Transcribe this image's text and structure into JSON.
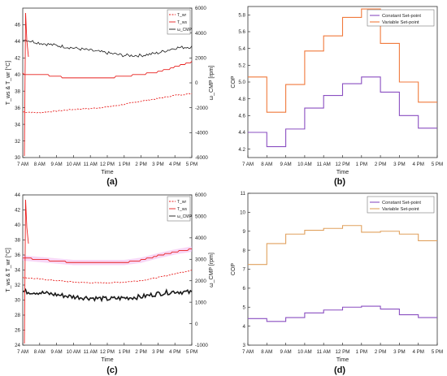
{
  "figure": {
    "panel_labels": [
      "(a)",
      "(b)",
      "(c)",
      "(d)"
    ]
  },
  "colors": {
    "red": "#e8201f",
    "black": "#1a1a1a",
    "purple": "#8a4fc1",
    "orange": "#f07a3c",
    "orange_d": "#e0a15e",
    "pink_band": "#f3b7ef"
  },
  "chart_data": [
    {
      "id": "a",
      "type": "line",
      "xlabel": "Time",
      "ylabel": "T_ws & T_wr [°C]",
      "y2label": "ω_CMP [rpm]",
      "xticks": [
        "7 AM",
        "8 AM",
        "9 AM",
        "10 AM",
        "11 AM",
        "12 PM",
        "1 PM",
        "2 PM",
        "3 PM",
        "4 PM",
        "5 PM"
      ],
      "ylim": [
        30,
        48
      ],
      "yticks": [
        30,
        32,
        34,
        36,
        38,
        40,
        42,
        44,
        46
      ],
      "y2lim": [
        -6000,
        6000
      ],
      "y2ticks": [
        -6000,
        -4000,
        -2000,
        0,
        2000,
        4000,
        6000
      ],
      "x": [
        7,
        8,
        9,
        10,
        11,
        12,
        13,
        14,
        15,
        16,
        17
      ],
      "legend": [
        "T_wr",
        "T_ws",
        "ω_CMP"
      ],
      "series": [
        {
          "name": "T_wr",
          "style": "dashed",
          "color": "red",
          "values": [
            35.5,
            35.4,
            35.6,
            35.8,
            35.9,
            36.1,
            36.4,
            36.8,
            37.1,
            37.5,
            37.7
          ]
        },
        {
          "name": "T_ws",
          "style": "solid",
          "color": "red",
          "values": [
            40.1,
            40.0,
            39.8,
            39.5,
            39.5,
            39.6,
            39.8,
            40.0,
            40.3,
            40.9,
            41.5
          ]
        },
        {
          "name": "ω_CMP",
          "axis": "right",
          "style": "solid",
          "color": "black",
          "values": [
            3500,
            3200,
            3000,
            2800,
            2600,
            2400,
            2200,
            2200,
            2400,
            2800,
            2900
          ]
        }
      ]
    },
    {
      "id": "b",
      "type": "line",
      "step": true,
      "xlabel": "Time",
      "ylabel": "COP",
      "xticks": [
        "7 AM",
        "8 AM",
        "9 AM",
        "10 AM",
        "11 AM",
        "12 PM",
        "1 PM",
        "2 PM",
        "3 PM",
        "4 PM",
        "5 PM"
      ],
      "ylim": [
        4.1,
        5.9
      ],
      "yticks": [
        4.2,
        4.4,
        4.6,
        4.8,
        5.0,
        5.2,
        5.4,
        5.6,
        5.8
      ],
      "legend_position": "top-right",
      "series": [
        {
          "name": "Constant Set-point",
          "color": "purple",
          "values": [
            4.4,
            4.23,
            4.44,
            4.69,
            4.84,
            4.98,
            5.06,
            4.88,
            4.6,
            4.45
          ]
        },
        {
          "name": "Variable Set-point",
          "color": "orange",
          "values": [
            5.06,
            4.64,
            4.97,
            5.37,
            5.55,
            5.77,
            5.87,
            5.46,
            5.0,
            4.76
          ]
        }
      ]
    },
    {
      "id": "c",
      "type": "line",
      "xlabel": "Time",
      "ylabel": "T_ws & T_wr [°C]",
      "y2label": "ω_CMP [rpm]",
      "xticks": [
        "7 AM",
        "8 AM",
        "9 AM",
        "10 AM",
        "11 AM",
        "12 PM",
        "1 PM",
        "2 PM",
        "3 PM",
        "4 PM",
        "5 PM"
      ],
      "ylim": [
        24,
        44
      ],
      "yticks": [
        24,
        26,
        28,
        30,
        32,
        34,
        36,
        38,
        40,
        42,
        44
      ],
      "y2lim": [
        -1000,
        6000
      ],
      "y2ticks": [
        -1000,
        0,
        1000,
        2000,
        3000,
        4000,
        5000,
        6000
      ],
      "x": [
        7,
        8,
        9,
        10,
        11,
        12,
        13,
        14,
        15,
        16,
        17
      ],
      "legend": [
        "T_wr",
        "T_ws",
        "ω_CMP"
      ],
      "series": [
        {
          "name": "T_wr",
          "style": "dashed",
          "color": "red",
          "values": [
            33.0,
            32.8,
            32.6,
            32.4,
            32.3,
            32.3,
            32.4,
            32.6,
            33.0,
            33.5,
            34.0
          ]
        },
        {
          "name": "T_ws",
          "style": "solid",
          "color": "red",
          "values": [
            35.6,
            35.4,
            35.2,
            35.0,
            35.0,
            35.0,
            35.0,
            35.3,
            35.9,
            36.4,
            36.8
          ]
        },
        {
          "name": "ω_CMP",
          "axis": "right",
          "style": "solid",
          "color": "black",
          "values": [
            1500,
            1450,
            1350,
            1250,
            1200,
            1150,
            1200,
            1250,
            1400,
            1500,
            1450
          ]
        }
      ]
    },
    {
      "id": "d",
      "type": "line",
      "step": true,
      "xlabel": "Time",
      "ylabel": "COP",
      "xticks": [
        "7 AM",
        "8 AM",
        "9 AM",
        "10 AM",
        "11 AM",
        "12 PM",
        "1 PM",
        "2 PM",
        "3 PM",
        "4 PM",
        "5 PM"
      ],
      "ylim": [
        3,
        11
      ],
      "yticks": [
        3,
        4,
        5,
        6,
        7,
        8,
        9,
        10,
        11
      ],
      "legend_position": "top-right",
      "series": [
        {
          "name": "Constant Set-point",
          "color": "purple",
          "values": [
            4.4,
            4.25,
            4.45,
            4.7,
            4.85,
            5.0,
            5.05,
            4.9,
            4.6,
            4.45
          ]
        },
        {
          "name": "Variable Set-point",
          "color": "orange_d",
          "values": [
            7.25,
            8.35,
            8.85,
            9.05,
            9.15,
            9.3,
            8.95,
            9.0,
            8.85,
            8.5
          ]
        }
      ]
    }
  ]
}
